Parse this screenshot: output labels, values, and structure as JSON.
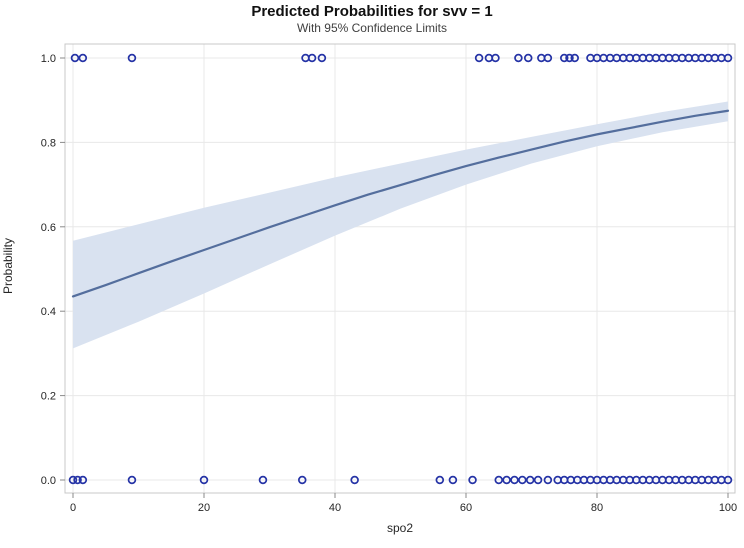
{
  "title": "Predicted Probabilities for svv = 1",
  "subtitle": "With 95% Confidence Limits",
  "colors": {
    "marker": "#2533a6",
    "fit_line": "#546e9d",
    "band": "#d9e2f0",
    "gridline": "#e8e8e8",
    "frame": "#c9c9c9",
    "tick": "#8a8a8a",
    "text": "#262626"
  },
  "chart_data": {
    "type": "scatter",
    "title": "Predicted Probabilities for svv = 1",
    "subtitle": "With 95% Confidence Limits",
    "xlabel": "spo2",
    "ylabel": "Probability",
    "xlim": [
      0,
      100
    ],
    "ylim": [
      0.0,
      1.0
    ],
    "xticks": [
      0,
      20,
      40,
      60,
      80,
      100
    ],
    "xtick_labels": [
      "0",
      "20",
      "40",
      "60",
      "80",
      "100"
    ],
    "yticks": [
      0.0,
      0.2,
      0.4,
      0.6,
      0.8,
      1.0
    ],
    "ytick_labels": [
      "0.0",
      "0.2",
      "0.4",
      "0.6",
      "0.8",
      "1.0"
    ],
    "grid": true,
    "legend": "none",
    "fit_line": {
      "name": "predicted probability",
      "x": [
        0,
        5,
        10,
        15,
        20,
        25,
        30,
        35,
        40,
        45,
        50,
        55,
        60,
        65,
        70,
        75,
        80,
        85,
        90,
        95,
        100
      ],
      "y": [
        0.435,
        0.462,
        0.49,
        0.518,
        0.545,
        0.572,
        0.599,
        0.625,
        0.651,
        0.676,
        0.699,
        0.722,
        0.744,
        0.764,
        0.783,
        0.802,
        0.819,
        0.834,
        0.849,
        0.863,
        0.875
      ]
    },
    "confidence_band": {
      "name": "95% confidence limits",
      "x": [
        0,
        10,
        20,
        30,
        40,
        50,
        60,
        70,
        80,
        90,
        100
      ],
      "upper": [
        0.567,
        0.606,
        0.645,
        0.681,
        0.717,
        0.75,
        0.783,
        0.813,
        0.843,
        0.872,
        0.897
      ],
      "lower": [
        0.312,
        0.375,
        0.442,
        0.511,
        0.579,
        0.643,
        0.7,
        0.75,
        0.791,
        0.824,
        0.85
      ]
    },
    "points_at_y1": [
      0.3,
      1.5,
      9,
      35.5,
      36.5,
      38,
      62,
      63.5,
      64.5,
      68,
      69.5,
      71.5,
      72.5,
      75,
      75.8,
      76.6,
      79,
      80,
      81,
      82,
      83,
      84,
      85,
      86,
      87,
      88,
      89,
      90,
      91,
      92,
      93,
      94,
      95,
      96,
      97,
      98,
      99,
      100
    ],
    "points_at_y0": [
      0,
      0.7,
      1.5,
      9,
      20,
      29,
      35,
      43,
      56,
      58,
      61,
      65,
      66.2,
      67.4,
      68.6,
      69.8,
      71,
      72.5,
      74,
      75,
      76,
      77,
      78,
      79,
      80,
      81,
      82,
      83,
      84,
      85,
      86,
      87,
      88,
      89,
      90,
      91,
      92,
      93,
      94,
      95,
      96,
      97,
      98,
      99,
      100
    ]
  }
}
